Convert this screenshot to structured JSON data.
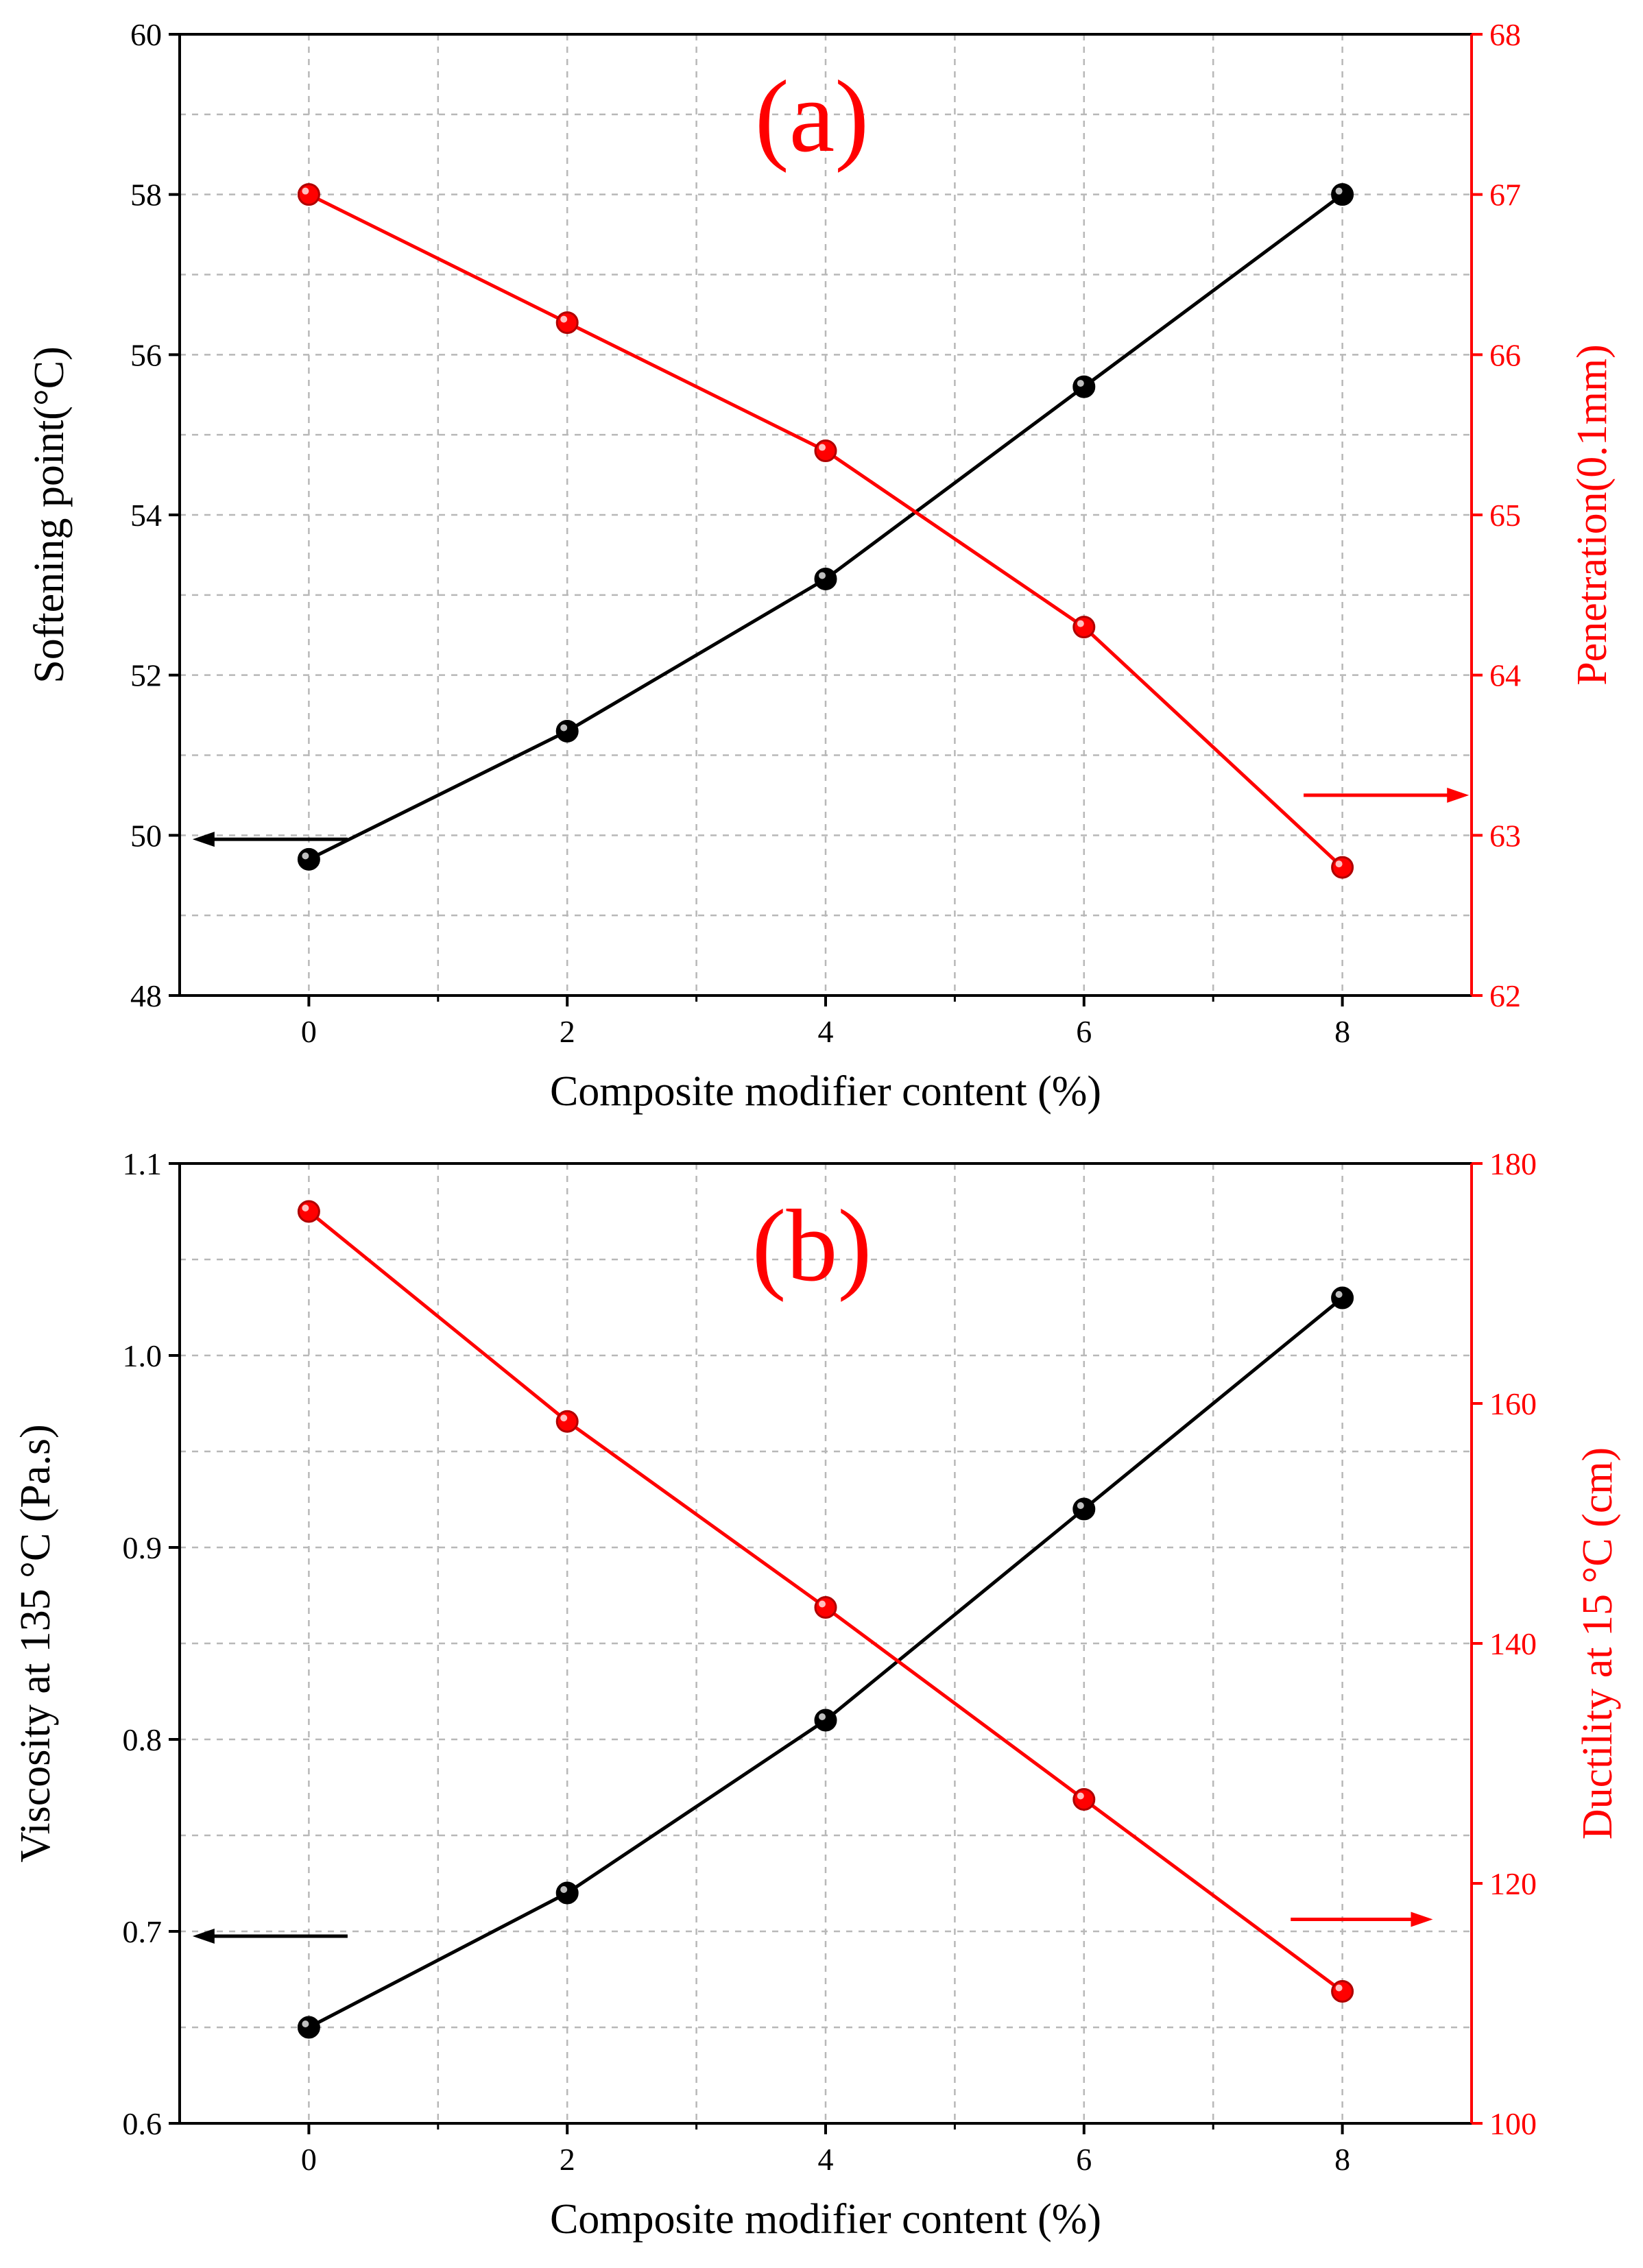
{
  "chart_data": [
    {
      "type": "line",
      "panel_label": "(a)",
      "xlabel": "Composite modifier content (%)",
      "x": [
        0,
        2,
        4,
        6,
        8
      ],
      "xlim": [
        -1,
        9
      ],
      "x_ticks": [
        "0",
        "2",
        "4",
        "6",
        "8"
      ],
      "ylabel_left": "Softening point(°C)",
      "ylim_left": [
        48,
        60
      ],
      "y_ticks_left": [
        "48",
        "50",
        "52",
        "54",
        "56",
        "58",
        "60"
      ],
      "ylabel_right": "Penetration(0.1mm)",
      "ylim_right": [
        62,
        68
      ],
      "y_ticks_right": [
        "62",
        "63",
        "64",
        "65",
        "66",
        "67",
        "68"
      ],
      "grid": true,
      "series": [
        {
          "name": "Softening point",
          "axis": "left",
          "color": "#000000",
          "values": [
            49.7,
            51.3,
            53.2,
            55.6,
            58.0
          ]
        },
        {
          "name": "Penetration",
          "axis": "right",
          "color": "#ff0000",
          "values": [
            67.0,
            66.2,
            65.4,
            64.3,
            62.8
          ]
        }
      ]
    },
    {
      "type": "line",
      "panel_label": "(b)",
      "xlabel": "Composite modifier content (%)",
      "x": [
        0,
        2,
        4,
        6,
        8
      ],
      "xlim": [
        -1,
        9
      ],
      "x_ticks": [
        "0",
        "2",
        "4",
        "6",
        "8"
      ],
      "ylabel_left": "Viscosity at 135 °C (Pa.s)",
      "ylim_left": [
        0.6,
        1.1
      ],
      "y_ticks_left": [
        "0.6",
        "0.7",
        "0.8",
        "0.9",
        "1.0",
        "1.1"
      ],
      "ylabel_right": "Ductility at 15 °C (cm)",
      "ylim_right": [
        100,
        180
      ],
      "y_ticks_right": [
        "100",
        "120",
        "140",
        "160",
        "180"
      ],
      "grid": true,
      "series": [
        {
          "name": "Viscosity",
          "axis": "left",
          "color": "#000000",
          "values": [
            0.65,
            0.72,
            0.81,
            0.92,
            1.03
          ]
        },
        {
          "name": "Ductility",
          "axis": "right",
          "color": "#ff0000",
          "values": [
            176,
            158.5,
            143,
            127,
            111
          ]
        }
      ]
    }
  ]
}
